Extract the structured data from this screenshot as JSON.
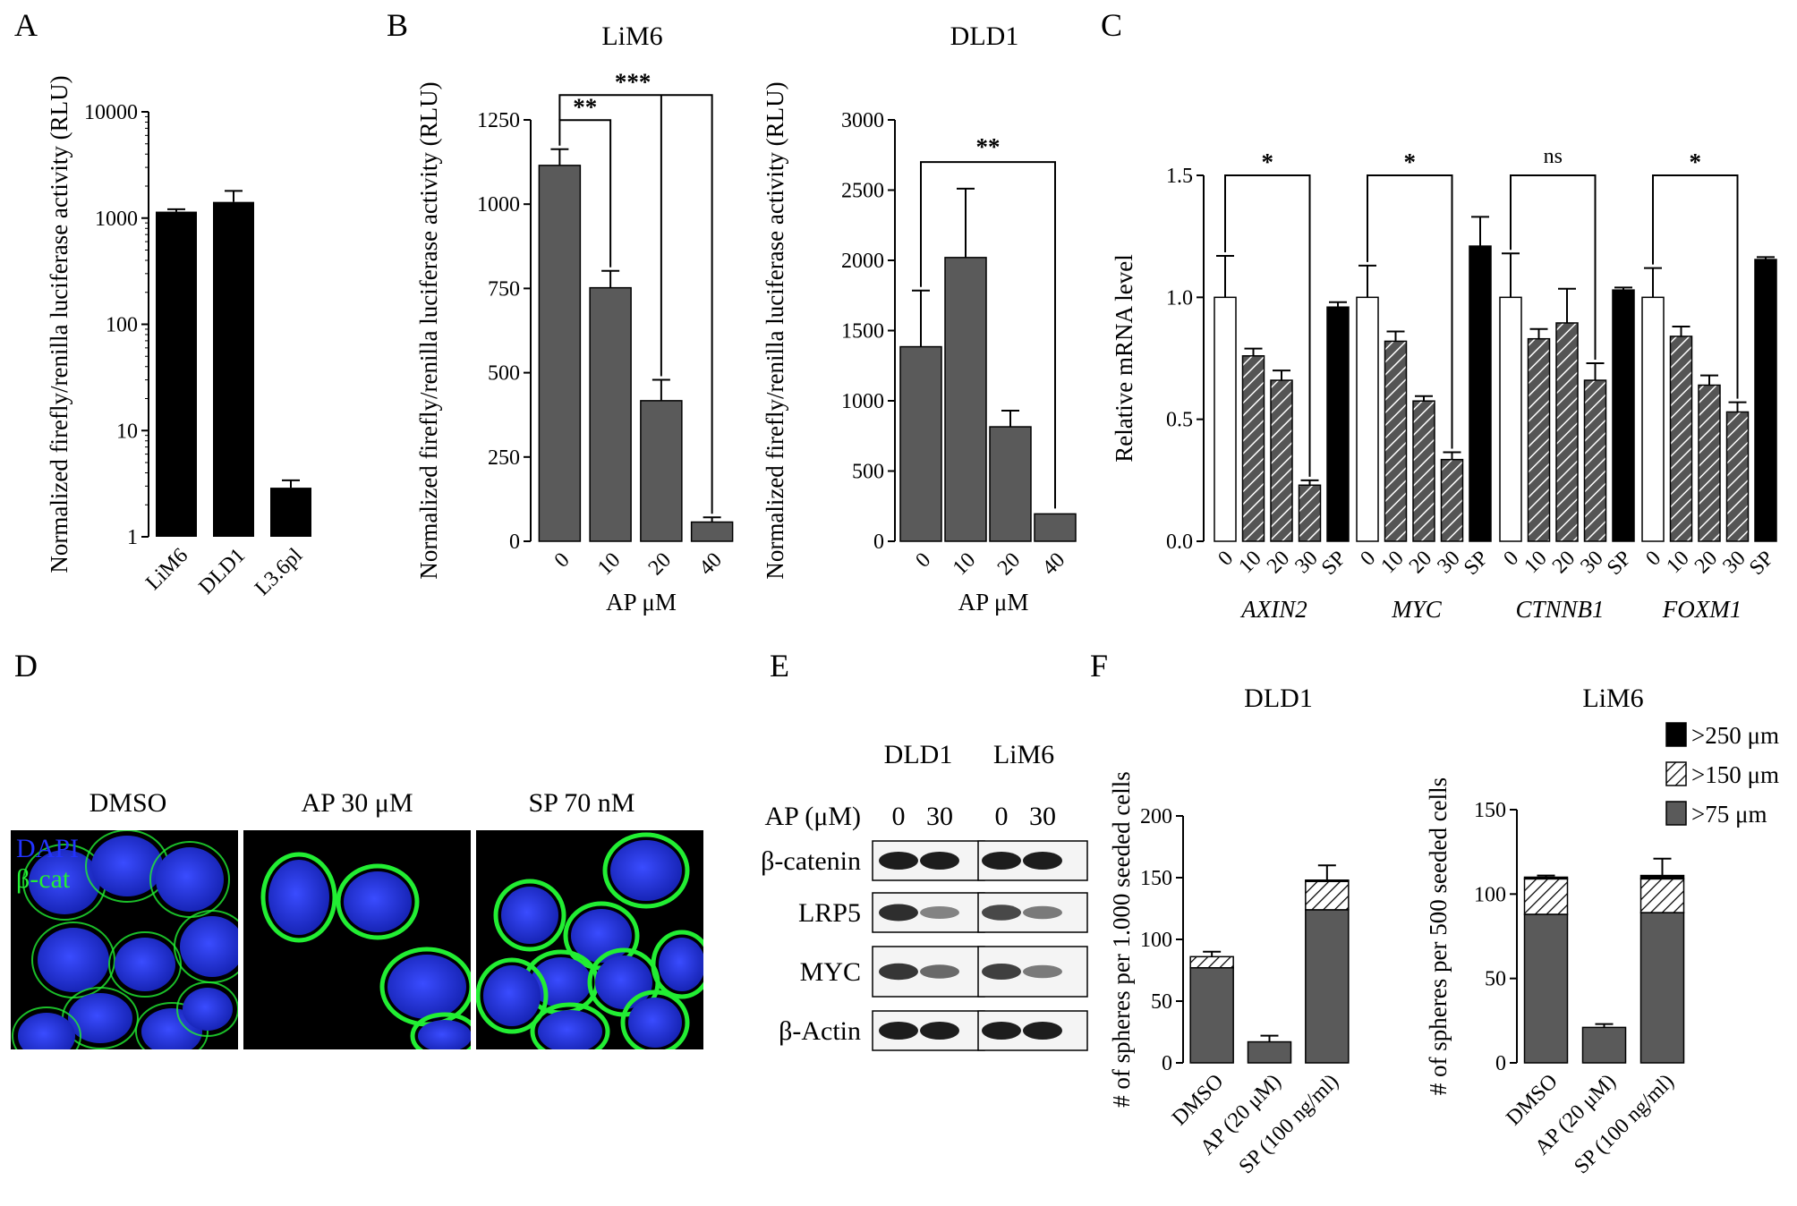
{
  "panels": {
    "a": "A",
    "b": "B",
    "c": "C",
    "d": "D",
    "e": "E",
    "f": "F"
  },
  "colors": {
    "black_bar": "#000000",
    "gray_bar": "#5a5a5a",
    "white_bar": "#ffffff",
    "dapi": "#2233ff",
    "beta_cat": "#22ee33"
  },
  "chart_data": [
    {
      "id": "A",
      "type": "bar",
      "yscale": "log",
      "title": "",
      "ylabel": "Normalized firefly/renilla luciferase activity (RLU)",
      "xlabel": "",
      "categories": [
        "LiM6",
        "DLD1",
        "L3.6pl"
      ],
      "values": [
        1150,
        1420,
        2.9
      ],
      "errors": [
        60,
        380,
        0.5
      ],
      "ylim": [
        1,
        10000
      ],
      "yticks": [
        1,
        10,
        100,
        1000,
        10000
      ],
      "ytick_labels": [
        "1",
        "10",
        "100",
        "1000",
        "10000"
      ],
      "bar_color": "#000000"
    },
    {
      "id": "B1",
      "type": "bar",
      "title": "LiM6",
      "ylabel": "Normalized firefly/renilla luciferase activity (RLU)",
      "xlabel": "AP μM",
      "categories": [
        "0",
        "10",
        "20",
        "40"
      ],
      "values": [
        1115,
        752,
        417,
        57
      ],
      "errors": [
        48,
        50,
        62,
        14
      ],
      "ylim": [
        0,
        1250
      ],
      "yticks": [
        0,
        250,
        500,
        750,
        1000,
        1250
      ],
      "ytick_labels": [
        "0",
        "250",
        "500",
        "750",
        "1000",
        "1250"
      ],
      "bar_color": "#5a5a5a",
      "significance": [
        {
          "from": 0,
          "to": 1,
          "label": "**",
          "y": 1175
        },
        {
          "from": 0,
          "to": 2,
          "label": "***",
          "y": 1275
        },
        {
          "from": 0,
          "to": 3,
          "label": "",
          "y": 1275
        }
      ]
    },
    {
      "id": "B2",
      "type": "bar",
      "title": "DLD1",
      "ylabel": "Normalized firefly/renilla luciferase activity (RLU)",
      "xlabel": "AP μM",
      "categories": [
        "0",
        "10",
        "20",
        "40"
      ],
      "values": [
        1385,
        2020,
        815,
        195
      ],
      "errors": [
        400,
        490,
        115,
        0
      ],
      "ylim": [
        0,
        3000
      ],
      "yticks": [
        0,
        500,
        1000,
        1500,
        2000,
        2500,
        3000
      ],
      "ytick_labels": [
        "0",
        "500",
        "1000",
        "1500",
        "2000",
        "2500",
        "3000"
      ],
      "bar_color": "#5a5a5a",
      "significance": [
        {
          "from": 0,
          "to": 3,
          "label": "**",
          "y": 2700
        }
      ]
    },
    {
      "id": "C",
      "type": "bar",
      "title": "",
      "ylabel": "Relative mRNA level",
      "xlabel": "",
      "groups": [
        "AXIN2",
        "MYC",
        "CTNNB1",
        "FOXM1"
      ],
      "categories": [
        "0",
        "10",
        "20",
        "30",
        "SP"
      ],
      "series": [
        {
          "group": "AXIN2",
          "values": [
            1.0,
            0.76,
            0.66,
            0.23,
            0.96
          ],
          "errors": [
            0.17,
            0.03,
            0.04,
            0.02,
            0.02
          ]
        },
        {
          "group": "MYC",
          "values": [
            1.0,
            0.82,
            0.575,
            0.335,
            1.21
          ],
          "errors": [
            0.13,
            0.04,
            0.02,
            0.03,
            0.12
          ]
        },
        {
          "group": "CTNNB1",
          "values": [
            1.0,
            0.83,
            0.895,
            0.66,
            1.03
          ],
          "errors": [
            0.18,
            0.04,
            0.14,
            0.07,
            0.01
          ]
        },
        {
          "group": "FOXM1",
          "values": [
            1.0,
            0.84,
            0.64,
            0.53,
            1.155
          ],
          "errors": [
            0.12,
            0.04,
            0.04,
            0.04,
            0.01
          ]
        }
      ],
      "ylim": [
        0,
        1.5
      ],
      "yticks": [
        0,
        0.5,
        1,
        1.5
      ],
      "ytick_labels": [
        "0.0",
        "0.5",
        "1.0",
        "1.5"
      ],
      "bar_styles": [
        "white",
        "hatch",
        "hatch",
        "hatch",
        "black"
      ],
      "significance": [
        {
          "label": "*",
          "y": 1.5
        },
        {
          "label": "*",
          "y": 1.5
        },
        {
          "label": "ns",
          "y": 1.5
        },
        {
          "label": "*",
          "y": 1.5
        }
      ]
    },
    {
      "id": "F1",
      "type": "bar",
      "stacked": true,
      "title": "DLD1",
      "ylabel": "# of spheres per 1.000 seeded cells",
      "xlabel": "",
      "categories": [
        "DMSO",
        "AP (20 μM)",
        "SP (100 ng/ml)"
      ],
      "series": [
        {
          "name": ">75 μm",
          "values": [
            77,
            17,
            124
          ]
        },
        {
          "name": ">150 μm",
          "values": [
            9,
            0,
            23
          ]
        },
        {
          "name": ">250 μm",
          "values": [
            0,
            0,
            1
          ]
        }
      ],
      "errors": [
        4,
        5,
        12
      ],
      "ylim": [
        0,
        200
      ],
      "yticks": [
        0,
        50,
        100,
        150,
        200
      ],
      "ytick_labels": [
        "0",
        "50",
        "100",
        "150",
        "200"
      ]
    },
    {
      "id": "F2",
      "type": "bar",
      "stacked": true,
      "title": "LiM6",
      "ylabel": "# of spheres per 500 seeded cells",
      "xlabel": "",
      "categories": [
        "DMSO",
        "AP (20 μM)",
        "SP (100 ng/ml)"
      ],
      "series": [
        {
          "name": ">75 μm",
          "values": [
            88,
            21,
            89
          ]
        },
        {
          "name": ">150 μm",
          "values": [
            21,
            0,
            20
          ]
        },
        {
          "name": ">250 μm",
          "values": [
            1,
            0,
            2
          ]
        }
      ],
      "errors": [
        1,
        2,
        10
      ],
      "ylim": [
        0,
        150
      ],
      "yticks": [
        0,
        50,
        100,
        150
      ],
      "ytick_labels": [
        "0",
        "50",
        "100",
        "150"
      ],
      "legend": [
        "&gt;250 μm",
        "&gt;150 μm",
        "&gt;75 μm"
      ],
      "legend_labels": [
        ">250 μm",
        ">150 μm",
        ">75 μm"
      ],
      "legend_position": "top-right"
    }
  ],
  "microscopy": {
    "labels": [
      "DMSO",
      "AP 30 μM",
      "SP 70 nM"
    ],
    "channels": [
      "DAPI",
      "β-cat"
    ]
  },
  "western": {
    "cell_lines": [
      "DLD1",
      "LiM6"
    ],
    "treatment_label": "AP (μM)",
    "doses": [
      "0",
      "30",
      "0",
      "30"
    ],
    "proteins": [
      "β-catenin",
      "LRP5",
      "MYC",
      "β-Actin"
    ],
    "band_intensity": [
      [
        1.0,
        1.0,
        1.0,
        1.0
      ],
      [
        0.9,
        0.4,
        0.75,
        0.45
      ],
      [
        0.85,
        0.55,
        0.8,
        0.45
      ],
      [
        1.0,
        1.0,
        1.0,
        1.0
      ]
    ]
  }
}
